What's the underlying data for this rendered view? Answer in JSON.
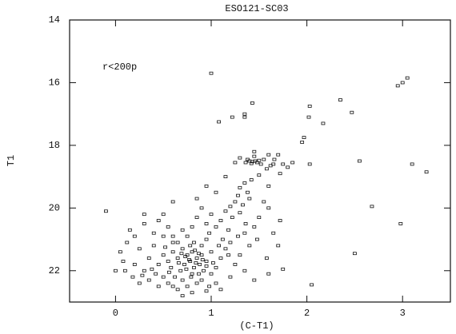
{
  "chart_data": {
    "type": "scatter",
    "title": "ESO121-SC03",
    "annotation": "r<200p",
    "x_label": "(C-T1)",
    "y_label": "T1",
    "xlim": [
      -0.48,
      3.5
    ],
    "ylim": [
      23,
      14
    ],
    "xticks": [
      0,
      1,
      2,
      3
    ],
    "yticks": [
      14,
      16,
      18,
      20,
      22
    ],
    "grid": false,
    "marker": "open-square",
    "color": "#111111",
    "x": [
      1.0,
      2.95,
      3.0,
      3.05,
      2.35,
      2.47,
      2.03,
      2.02,
      2.17,
      1.43,
      1.35,
      1.22,
      1.35,
      1.08,
      1.97,
      1.95,
      2.55,
      2.03,
      3.1,
      3.25,
      2.68,
      2.98,
      -0.1,
      2.5,
      2.05,
      1.6,
      1.75,
      1.4,
      1.43,
      1.46,
      1.48,
      1.38,
      1.5,
      1.42,
      1.52,
      1.36,
      1.45,
      1.25,
      1.3,
      1.55,
      1.65,
      1.7,
      1.75,
      1.8,
      1.85,
      1.6,
      1.58,
      1.72,
      1.66,
      1.62,
      1.45,
      1.5,
      1.42,
      1.35,
      1.38,
      1.3,
      1.28,
      1.25,
      1.33,
      1.4,
      1.2,
      1.15,
      1.22,
      1.3,
      1.36,
      1.1,
      1.05,
      1.18,
      1.28,
      1.12,
      1.0,
      0.95,
      0.9,
      0.98,
      0.85,
      0.8,
      0.75,
      0.82,
      0.9,
      0.95,
      0.7,
      0.75,
      0.8,
      0.85,
      0.9,
      0.95,
      1.0,
      0.65,
      0.6,
      0.72,
      0.78,
      0.82,
      0.88,
      0.92,
      0.68,
      0.58,
      0.55,
      0.5,
      0.45,
      0.62,
      0.7,
      0.8,
      0.85,
      0.75,
      0.9,
      1.0,
      1.05,
      1.1,
      1.15,
      0.98,
      0.4,
      0.35,
      0.3,
      0.25,
      0.2,
      0.15,
      0.3,
      0.4,
      0.5,
      0.55,
      0.6,
      0.65,
      0.7,
      0.5,
      0.45,
      0.2,
      0.1,
      0.05,
      0.12,
      0.18,
      0.35,
      0.45,
      0.55,
      0.65,
      0.8,
      0.95,
      1.05,
      1.2,
      1.25,
      1.3,
      1.4,
      1.35,
      1.45,
      1.5,
      1.6,
      1.55,
      1.48,
      1.2,
      1.18,
      1.08,
      0.78,
      0.83,
      0.87,
      0.73,
      0.77,
      0.84,
      0.91,
      0.69,
      0.66,
      0.74,
      0.87,
      0.79,
      0.95,
      1.02,
      0.6,
      0.52,
      0.38,
      0.28,
      0.42,
      0.56,
      0.3,
      0.0,
      0.08,
      0.6,
      0.85,
      0.95,
      1.15,
      1.05,
      1.6,
      1.58,
      1.7,
      1.65,
      1.72,
      1.35,
      1.45,
      1.1,
      0.7,
      0.6,
      0.5,
      0.25
    ],
    "values": [
      15.7,
      16.1,
      16.0,
      15.85,
      16.55,
      16.95,
      16.75,
      17.1,
      17.3,
      16.65,
      17.0,
      17.1,
      17.1,
      17.25,
      17.75,
      17.9,
      18.5,
      18.6,
      18.6,
      18.85,
      19.95,
      20.5,
      20.1,
      21.45,
      22.45,
      22.1,
      21.95,
      18.5,
      18.52,
      18.5,
      18.55,
      18.45,
      18.48,
      18.58,
      18.6,
      18.55,
      18.35,
      18.55,
      18.4,
      18.45,
      18.6,
      18.3,
      18.6,
      18.7,
      18.55,
      18.3,
      18.75,
      18.9,
      18.45,
      18.65,
      18.2,
      18.95,
      19.1,
      19.2,
      19.5,
      19.35,
      19.6,
      19.8,
      19.9,
      19.7,
      19.95,
      20.1,
      20.3,
      20.15,
      20.5,
      20.4,
      20.6,
      20.7,
      20.9,
      21.0,
      20.2,
      20.5,
      20.0,
      20.8,
      20.3,
      20.6,
      20.9,
      21.1,
      21.2,
      21.0,
      21.3,
      21.5,
      21.4,
      21.6,
      21.5,
      21.7,
      21.4,
      21.6,
      21.4,
      21.8,
      21.7,
      21.9,
      21.8,
      22.0,
      22.0,
      21.9,
      21.7,
      21.5,
      21.8,
      22.2,
      22.3,
      22.1,
      22.4,
      22.5,
      22.3,
      22.1,
      21.9,
      21.6,
      21.3,
      22.5,
      21.2,
      21.6,
      22.0,
      21.3,
      20.9,
      20.7,
      20.5,
      20.8,
      20.9,
      20.6,
      20.9,
      21.1,
      20.7,
      20.2,
      20.4,
      21.8,
      22.0,
      21.4,
      21.1,
      22.2,
      22.3,
      22.5,
      22.4,
      22.6,
      22.7,
      22.65,
      22.4,
      22.2,
      21.8,
      21.5,
      21.2,
      20.8,
      20.6,
      20.3,
      20.0,
      19.8,
      21.0,
      21.1,
      21.5,
      21.2,
      21.2,
      21.35,
      21.45,
      21.55,
      21.65,
      21.75,
      21.65,
      21.45,
      21.75,
      21.95,
      22.1,
      22.2,
      21.85,
      21.75,
      21.1,
      21.25,
      21.95,
      22.15,
      22.1,
      22.05,
      20.2,
      22.0,
      21.7,
      19.8,
      19.7,
      19.3,
      19.0,
      19.5,
      19.3,
      21.6,
      21.2,
      20.8,
      20.4,
      22.0,
      22.3,
      22.6,
      22.8,
      22.5,
      22.2,
      22.4
    ]
  }
}
